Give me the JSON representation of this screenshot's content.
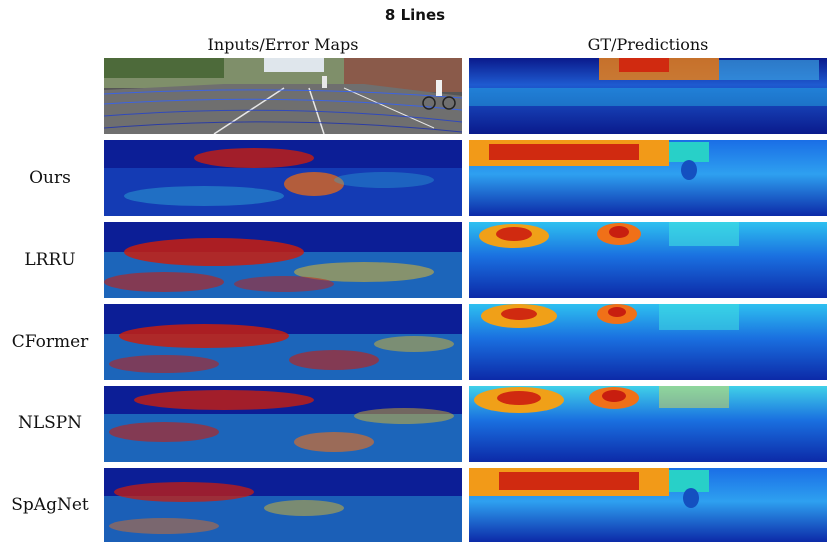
{
  "figure": {
    "title": "8 Lines",
    "col_headers": [
      "Inputs/Error Maps",
      "GT/Predictions"
    ],
    "rows": [
      {
        "label": ""
      },
      {
        "label": "Ours"
      },
      {
        "label": "LRRU"
      },
      {
        "label": "CFormer"
      },
      {
        "label": "NLSPN"
      },
      {
        "label": "SpAgNet"
      }
    ]
  },
  "colors": {
    "depth_near": "#c81e0f",
    "depth_mid": "#f3c814",
    "depth_far": "#0a1a8c",
    "error_bg": "#0a1a8c"
  }
}
